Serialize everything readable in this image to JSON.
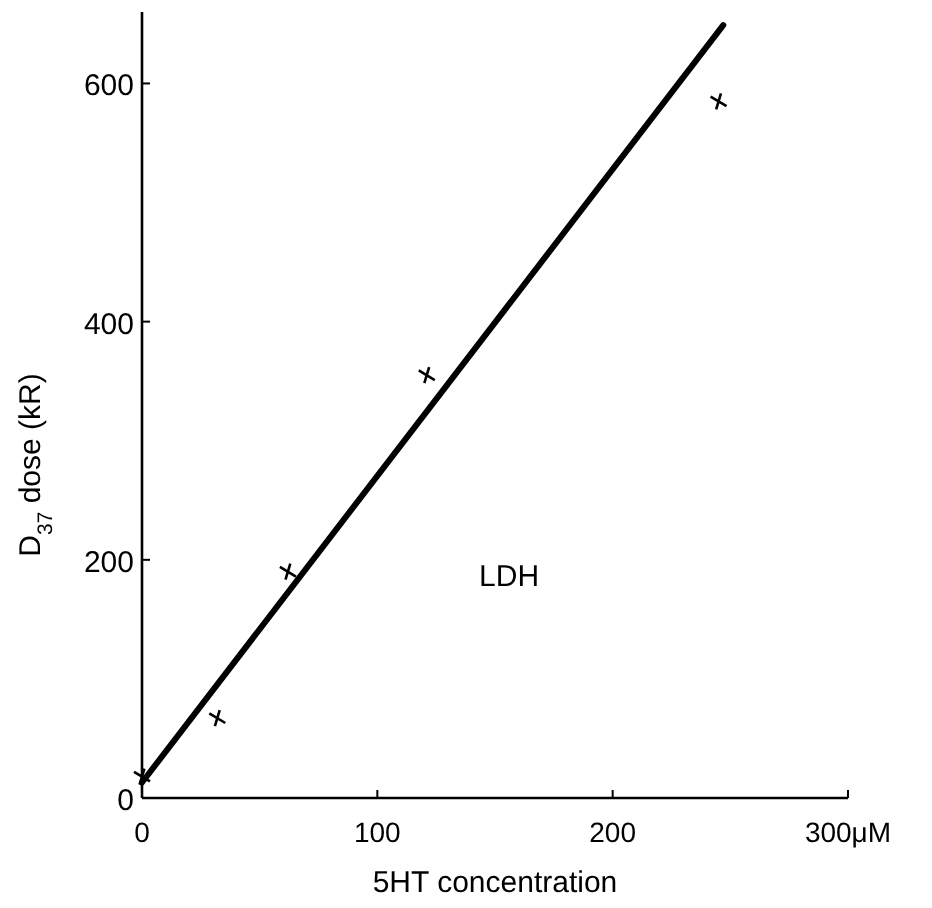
{
  "chart_data": {
    "type": "scatter",
    "xlabel": "5HT concentration",
    "ylabel": "D$_{37}$ dose (kR)",
    "annotations": [
      "LDH"
    ],
    "xlim": [
      0,
      300
    ],
    "xticks": [
      0,
      100,
      200,
      {
        "value": 300,
        "label": "300μM"
      }
    ],
    "ylim": [
      0,
      660
    ],
    "yticks": [
      0,
      200,
      400,
      600
    ],
    "grid": false,
    "series": [
      {
        "color": "#000000",
        "marker": "cross",
        "x": [
          0,
          32,
          62,
          121,
          245
        ],
        "values": [
          18,
          67,
          190,
          355,
          585
        ]
      },
      {
        "type": "line",
        "color": "#000000",
        "marker": "none",
        "line_style": "solid",
        "x": [
          0,
          247
        ],
        "values": [
          13,
          649
        ]
      }
    ]
  }
}
